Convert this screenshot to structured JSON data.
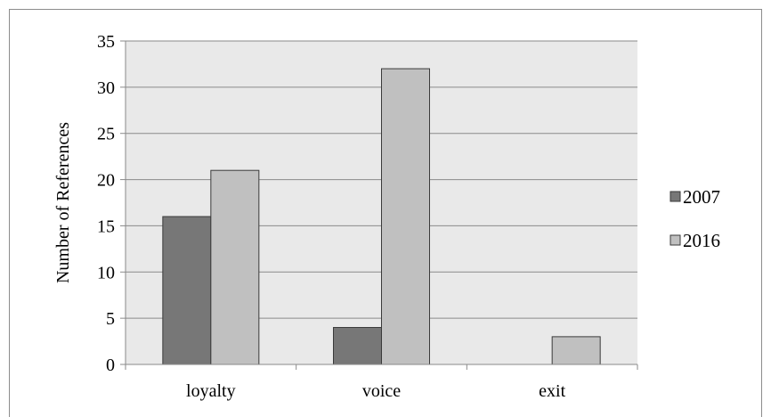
{
  "chart_data": {
    "type": "bar",
    "categories": [
      "loyalty",
      "voice",
      "exit"
    ],
    "series": [
      {
        "name": "2007",
        "values": [
          16,
          4,
          0
        ],
        "color": "#777777"
      },
      {
        "name": "2016",
        "values": [
          21,
          32,
          3
        ],
        "color": "#c0c0c0"
      }
    ],
    "ylabel": "Number of References",
    "ylim": [
      0,
      35
    ],
    "yticks": [
      0,
      5,
      10,
      15,
      20,
      25,
      30,
      35
    ],
    "grid": true,
    "plot_background": "#e9e9e9",
    "legend_position": "right"
  }
}
